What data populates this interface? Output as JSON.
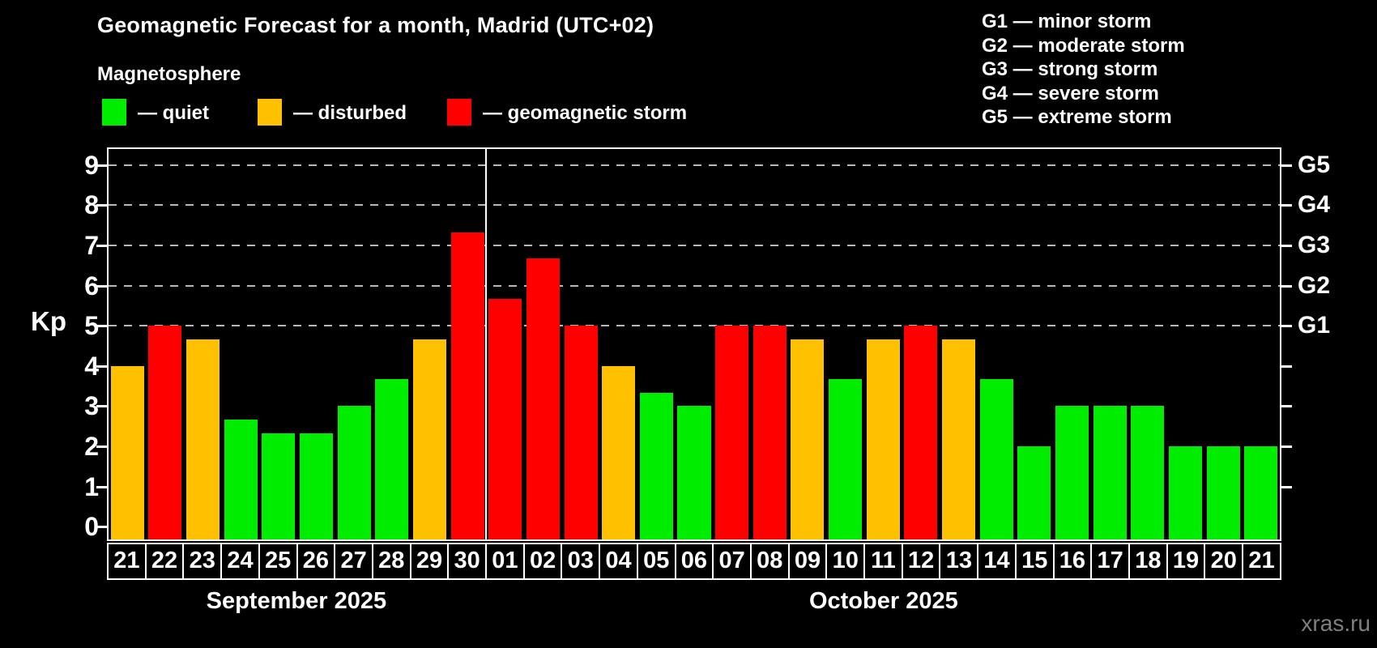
{
  "header": {
    "title": "Geomagnetic Forecast for a month, Madrid (UTC+02)",
    "subtitle": "Magnetosphere"
  },
  "legend": {
    "items": [
      {
        "key": "quiet",
        "label": "— quiet"
      },
      {
        "key": "disturbed",
        "label": "— disturbed"
      },
      {
        "key": "storm",
        "label": "— geomagnetic storm"
      }
    ]
  },
  "g_legend": {
    "items": [
      "G1 — minor storm",
      "G2 — moderate storm",
      "G3 — strong storm",
      "G4 — severe storm",
      "G5 — extreme storm"
    ]
  },
  "axes": {
    "ylabel": "Kp",
    "yticks": [
      0,
      1,
      2,
      3,
      4,
      5,
      6,
      7,
      8,
      9
    ],
    "right_ticks": [
      1,
      2,
      3,
      4,
      5,
      6,
      7,
      8,
      9
    ],
    "right_labels": [
      {
        "label": "G1",
        "kp": 5
      },
      {
        "label": "G2",
        "kp": 6
      },
      {
        "label": "G3",
        "kp": 7
      },
      {
        "label": "G4",
        "kp": 8
      },
      {
        "label": "G5",
        "kp": 9
      }
    ]
  },
  "colors": {
    "quiet": "#00ed00",
    "disturbed": "#ffc000",
    "storm": "#ff0000",
    "grid": "#b8b8b8",
    "frame": "#ffffff",
    "watermark": "#7f7f7f"
  },
  "chart_data": {
    "type": "bar",
    "title": "Geomagnetic Forecast for a month, Madrid (UTC+02)",
    "subtitle": "Magnetosphere",
    "ylabel": "Kp",
    "ylim": [
      0,
      9
    ],
    "plot_range": {
      "ymin": -0.32,
      "ymax": 9.4
    },
    "grid_kp": [
      5,
      6,
      7,
      8,
      9
    ],
    "legend_position": "top",
    "categories": [
      "21",
      "22",
      "23",
      "24",
      "25",
      "26",
      "27",
      "28",
      "29",
      "30",
      "01",
      "02",
      "03",
      "04",
      "05",
      "06",
      "07",
      "08",
      "09",
      "10",
      "11",
      "12",
      "13",
      "14",
      "15",
      "16",
      "17",
      "18",
      "19",
      "20",
      "21"
    ],
    "values": [
      4.0,
      5.0,
      4.67,
      2.67,
      2.33,
      2.33,
      3.0,
      3.67,
      4.67,
      7.33,
      5.67,
      6.67,
      5.0,
      4.0,
      3.33,
      3.0,
      5.0,
      5.0,
      4.67,
      3.67,
      4.67,
      5.0,
      4.67,
      3.67,
      2.0,
      3.0,
      3.0,
      3.0,
      2.0,
      2.0,
      2.0
    ],
    "statuses": [
      "disturbed",
      "storm",
      "disturbed",
      "quiet",
      "quiet",
      "quiet",
      "quiet",
      "quiet",
      "disturbed",
      "storm",
      "storm",
      "storm",
      "storm",
      "disturbed",
      "quiet",
      "quiet",
      "storm",
      "storm",
      "disturbed",
      "quiet",
      "disturbed",
      "storm",
      "disturbed",
      "quiet",
      "quiet",
      "quiet",
      "quiet",
      "quiet",
      "quiet",
      "quiet",
      "quiet"
    ],
    "months": [
      {
        "label": "September 2025",
        "days": 10
      },
      {
        "label": "October 2025",
        "days": 21
      }
    ]
  },
  "watermark": "xras.ru"
}
